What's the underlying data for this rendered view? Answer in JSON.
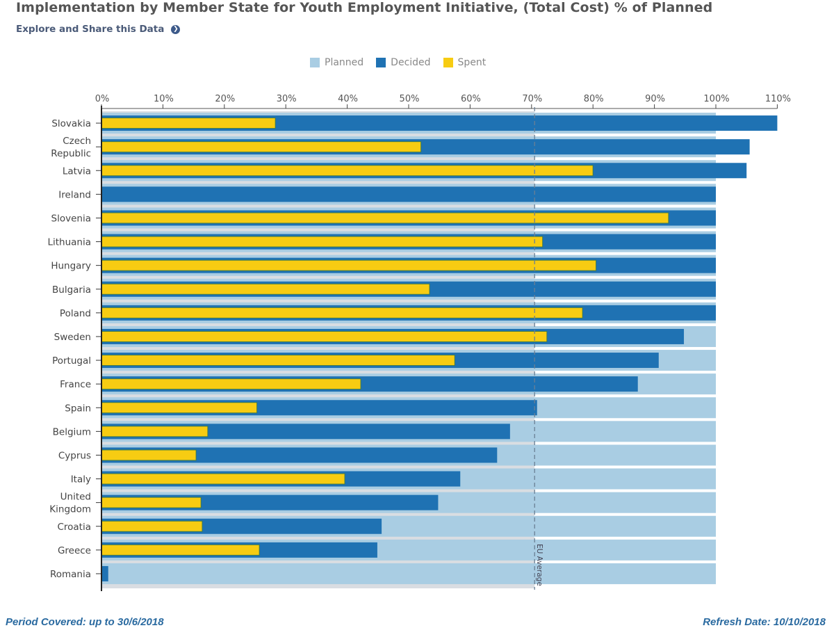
{
  "header": {
    "title": "Implementation by Member State for Youth Employment Initiative, (Total Cost) % of Planned",
    "explore_link": "Explore and Share this Data",
    "explore_icon": "circle-arrow-right-icon"
  },
  "legend": [
    {
      "label": "Planned",
      "color": "#a9cde3"
    },
    {
      "label": "Decided",
      "color": "#1f72b3"
    },
    {
      "label": "Spent",
      "color": "#f7cc12"
    }
  ],
  "footer": {
    "period": "Period Covered: up to 30/6/2018",
    "refresh": "Refresh Date: 10/10/2018"
  },
  "chart_data": {
    "type": "bar",
    "orientation": "horizontal",
    "title": "Implementation by Member State for Youth Employment Initiative, (Total Cost) % of Planned",
    "xlabel": "",
    "ylabel": "",
    "xlim": [
      0,
      110
    ],
    "x_ticks": [
      "0%",
      "10%",
      "20%",
      "30%",
      "40%",
      "50%",
      "60%",
      "70%",
      "80%",
      "90%",
      "100%",
      "110%"
    ],
    "categories": [
      "Slovakia",
      "Czech Republic",
      "Latvia",
      "Ireland",
      "Slovenia",
      "Lithuania",
      "Hungary",
      "Bulgaria",
      "Poland",
      "Sweden",
      "Portugal",
      "France",
      "Spain",
      "Belgium",
      "Cyprus",
      "Italy",
      "United Kingdom",
      "Croatia",
      "Greece",
      "Romania"
    ],
    "series": [
      {
        "name": "Planned",
        "color": "#a9cde3",
        "values": [
          100,
          100,
          100,
          100,
          100,
          100,
          100,
          100,
          100,
          100,
          100,
          100,
          100,
          100,
          100,
          100,
          100,
          100,
          100,
          100
        ]
      },
      {
        "name": "Decided",
        "color": "#1f72b3",
        "values": [
          110,
          105.5,
          105,
          100,
          100,
          100,
          100,
          100,
          100,
          94.8,
          90.7,
          87.3,
          70.9,
          66.5,
          64.4,
          58.4,
          54.8,
          45.6,
          44.9,
          1.1
        ]
      },
      {
        "name": "Spent",
        "color": "#f7cc12",
        "values": [
          28.3,
          52,
          80,
          0,
          92.3,
          71.8,
          80.5,
          53.4,
          78.3,
          72.5,
          57.5,
          42.2,
          25.3,
          17.3,
          15.4,
          39.6,
          16.2,
          16.4,
          25.7,
          0
        ]
      }
    ],
    "reference_line": {
      "label": "EU Average",
      "value": 70.5,
      "style": "dashed"
    },
    "legend_position": "top-center",
    "grid": false
  }
}
